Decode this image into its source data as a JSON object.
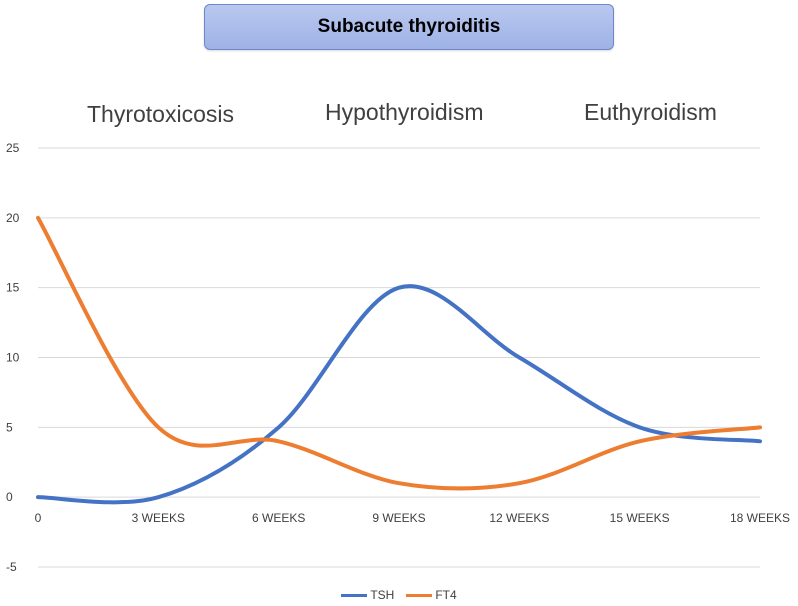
{
  "title": "Subacute thyroiditis",
  "phases": [
    "Thyrotoxicosis",
    "Hypothyroidism",
    "Euthyroidism"
  ],
  "chart_data": {
    "type": "line",
    "title": "Subacute thyroiditis",
    "categories": [
      "0",
      "3 WEEKS",
      "6 WEEKS",
      "9 WEEKS",
      "12 WEEKS",
      "15 WEEKS",
      "18 WEEKS"
    ],
    "y_ticks": [
      "-5",
      "0",
      "5",
      "10",
      "15",
      "20",
      "25"
    ],
    "ylim": [
      -5,
      25
    ],
    "grid": true,
    "legend_position": "bottom",
    "series": [
      {
        "name": "TSH",
        "color": "#4472c4",
        "values": [
          0,
          0,
          5,
          15,
          10,
          5,
          4
        ]
      },
      {
        "name": "FT4",
        "color": "#ed7d31",
        "values": [
          20,
          5,
          4,
          1,
          1,
          4,
          5
        ]
      }
    ]
  }
}
